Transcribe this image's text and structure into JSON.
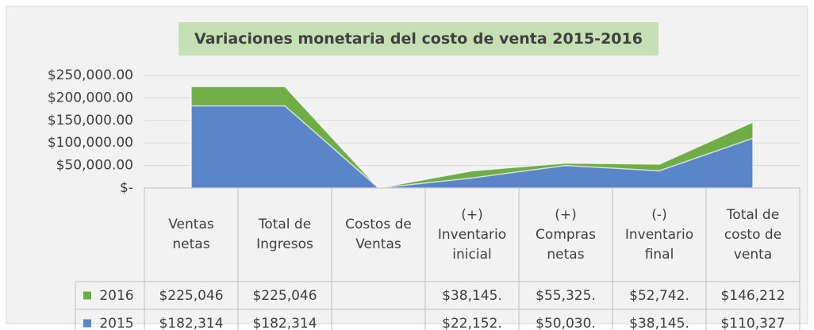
{
  "chart_data": {
    "type": "area",
    "title": "Variaciones monetaria del costo de venta 2015-2016",
    "categories": [
      "Ventas netas",
      "Total de Ingresos",
      "Costos de Ventas",
      "(+) Inventario inicial",
      "(+) Compras netas",
      "(-) Inventario final",
      "Total de costo de venta"
    ],
    "series": [
      {
        "name": "2016",
        "color": "#70ad47",
        "values": [
          225046,
          225046,
          0,
          38145,
          55325,
          52742,
          146212
        ],
        "value_labels": [
          "$225,046",
          "$225,046",
          null,
          "$38,145.",
          "$55,325.",
          "$52,742.",
          "$146,212"
        ]
      },
      {
        "name": "2015",
        "color": "#5b85c9",
        "values": [
          182314,
          182314,
          0,
          22152,
          50030,
          38145,
          110327
        ],
        "value_labels": [
          "$182,314",
          "$182,314",
          null,
          "$22,152.",
          "$50,030.",
          "$38,145.",
          "$110,327"
        ]
      }
    ],
    "ylim": [
      0,
      250000
    ],
    "yticks": [
      {
        "value": 0,
        "label": "$-"
      },
      {
        "value": 50000,
        "label": "$50,000.00"
      },
      {
        "value": 100000,
        "label": "$100,000.00"
      },
      {
        "value": 150000,
        "label": "$150,000.00"
      },
      {
        "value": 200000,
        "label": "$200,000.00"
      },
      {
        "value": 250000,
        "label": "$250,000.00"
      }
    ],
    "grid": true
  }
}
